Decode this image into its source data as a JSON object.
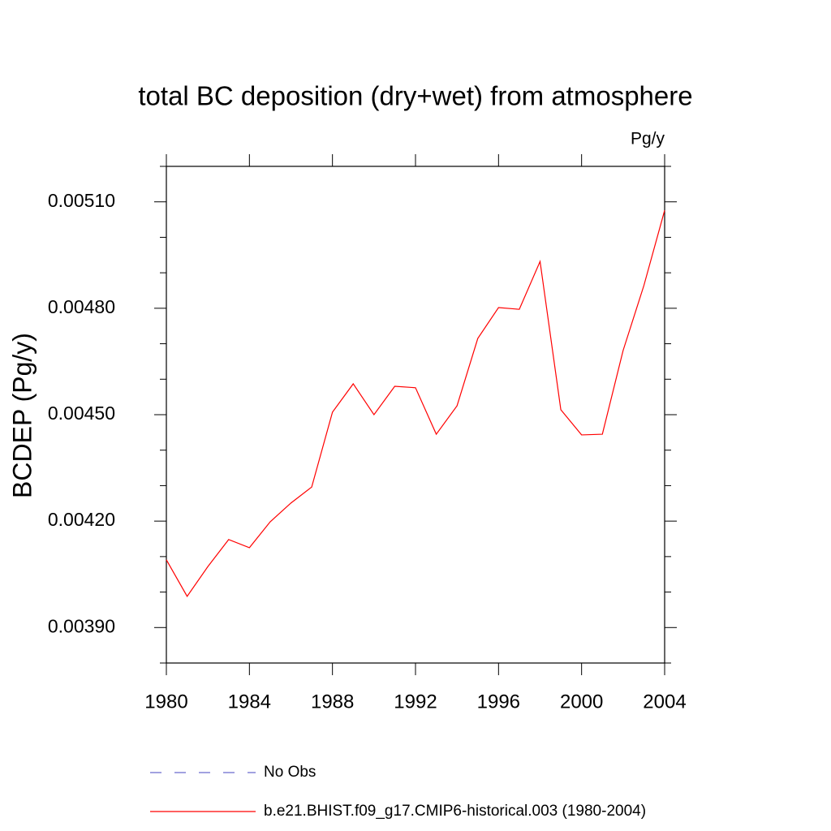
{
  "chart_data": {
    "type": "line",
    "title": "total BC deposition (dry+wet) from atmosphere",
    "units": "Pg/y",
    "y_label": "BCDEP  (Pg/y)",
    "x": [
      1980,
      1981,
      1982,
      1983,
      1984,
      1985,
      1986,
      1987,
      1988,
      1989,
      1990,
      1991,
      1992,
      1993,
      1994,
      1995,
      1996,
      1997,
      1998,
      1999,
      2000,
      2001,
      2002,
      2003,
      2004
    ],
    "series": [
      {
        "name": "No Obs",
        "color": "#6a6acd",
        "dashed": true,
        "values": [
          null,
          null,
          null,
          null,
          null,
          null,
          null,
          null,
          null,
          null,
          null,
          null,
          null,
          null,
          null,
          null,
          null,
          null,
          null,
          null,
          null,
          null,
          null,
          null,
          null
        ]
      },
      {
        "name": "b.e21.BHIST.f09_g17.CMIP6-historical.003 (1980-2004)",
        "color": "#ff0000",
        "dashed": false,
        "values": [
          0.004091,
          0.003988,
          0.004072,
          0.004148,
          0.004125,
          0.004198,
          0.004251,
          0.004296,
          0.004507,
          0.004587,
          0.0045,
          0.00458,
          0.004576,
          0.004445,
          0.004525,
          0.004715,
          0.004802,
          0.004797,
          0.004932,
          0.004514,
          0.004443,
          0.004445,
          0.004681,
          0.004864,
          0.005076
        ]
      }
    ],
    "xlim": [
      1980,
      2004
    ],
    "xticks": [
      1980,
      1984,
      1988,
      1992,
      1996,
      2000,
      2004
    ],
    "ylim": [
      0.0038,
      0.0052
    ],
    "yticks": [
      {
        "value": 0.0039,
        "label": "0.00390"
      },
      {
        "value": 0.0042,
        "label": "0.00420"
      },
      {
        "value": 0.0045,
        "label": "0.00450"
      },
      {
        "value": 0.0048,
        "label": "0.00480"
      },
      {
        "value": 0.0051,
        "label": "0.00510"
      }
    ],
    "grid": false
  }
}
